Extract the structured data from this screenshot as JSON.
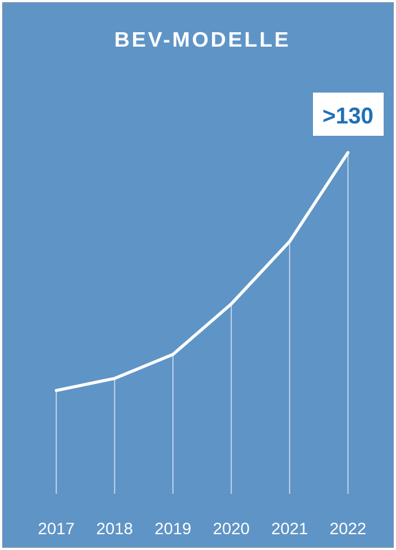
{
  "colors": {
    "background": "#5f94c6",
    "line": "#ffffff",
    "callout_text": "#1f6fb5",
    "callout_box": "#ffffff"
  },
  "chart_data": {
    "type": "line",
    "title": "BEV-MODELLE",
    "xlabel": "",
    "ylabel": "",
    "categories": [
      "2017",
      "2018",
      "2019",
      "2020",
      "2021",
      "2022"
    ],
    "values": [
      33,
      38,
      48,
      69,
      95,
      132
    ],
    "ylim": [
      -10,
      135
    ],
    "grid": false,
    "annotation": {
      "label": ">130",
      "category": "2022"
    }
  }
}
